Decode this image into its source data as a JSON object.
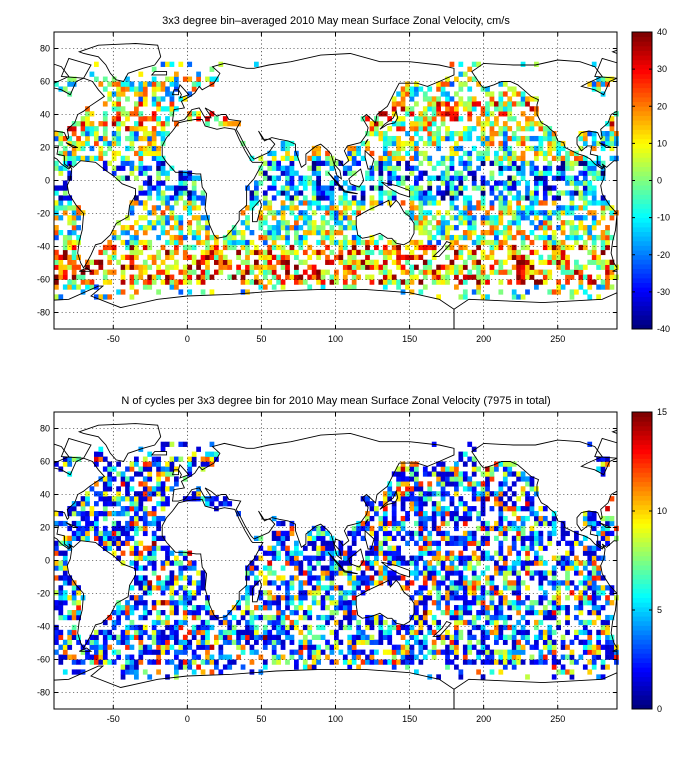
{
  "chart_data": [
    {
      "type": "heatmap",
      "title": "3x3 degree bin–averaged 2010 May mean Surface Zonal Velocity, cm/s",
      "xlim": [
        -90,
        290
      ],
      "ylim": [
        -90,
        90
      ],
      "x_ticks": [
        -50,
        0,
        50,
        100,
        150,
        200,
        250
      ],
      "y_ticks": [
        -80,
        -60,
        -40,
        -20,
        0,
        20,
        40,
        60,
        80
      ],
      "grid": true,
      "bin_size_deg": 3,
      "colormap": "jet",
      "colorbar": {
        "range": [
          -40,
          40
        ],
        "ticks": [
          40,
          30,
          20,
          10,
          0,
          -10,
          -20,
          -30,
          -40
        ]
      }
    },
    {
      "type": "heatmap",
      "title": "N of cycles per 3x3 degree bin for 2010 May mean Surface Zonal Velocity (7975 in total)",
      "xlim": [
        -90,
        290
      ],
      "ylim": [
        -90,
        90
      ],
      "x_ticks": [
        -50,
        0,
        50,
        100,
        150,
        200,
        250
      ],
      "y_ticks": [
        -80,
        -60,
        -40,
        -20,
        0,
        20,
        40,
        60,
        80
      ],
      "grid": true,
      "bin_size_deg": 3,
      "colormap": "jet",
      "colorbar": {
        "range": [
          0,
          15
        ],
        "ticks": [
          15,
          10,
          5,
          0
        ]
      }
    }
  ]
}
